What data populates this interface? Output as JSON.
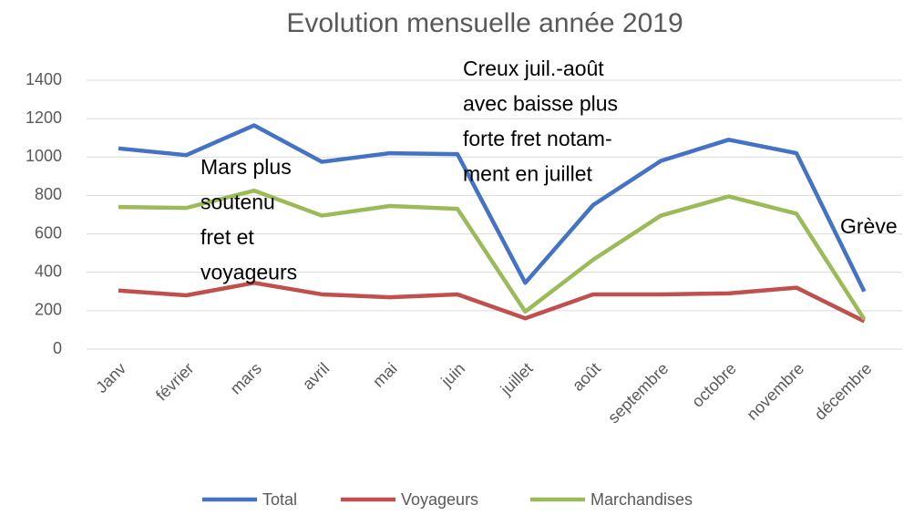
{
  "chart_data": {
    "type": "line",
    "title": "Evolution mensuelle année 2019",
    "categories": [
      "Janv",
      "février",
      "mars",
      "avril",
      "mai",
      "juin",
      "juillet",
      "août",
      "septembre",
      "octobre",
      "novembre",
      "décembre"
    ],
    "series": [
      {
        "name": "Total",
        "color": "#4472c4",
        "values": [
          1045,
          1010,
          1165,
          975,
          1020,
          1015,
          345,
          750,
          980,
          1090,
          1020,
          300
        ]
      },
      {
        "name": "Voyageurs",
        "color": "#c0504d",
        "values": [
          305,
          280,
          345,
          285,
          270,
          285,
          160,
          285,
          285,
          290,
          320,
          145
        ]
      },
      {
        "name": "Marchandises",
        "color": "#9bbb59",
        "values": [
          740,
          735,
          825,
          695,
          745,
          730,
          195,
          465,
          695,
          795,
          705,
          155
        ]
      }
    ],
    "ylim": [
      0,
      1400
    ],
    "yticks": [
      0,
      200,
      400,
      600,
      800,
      1000,
      1200,
      1400
    ],
    "grid": true,
    "legend": "bottom",
    "annotations": [
      {
        "lines": [
          "Mars plus",
          "soutenu",
          "fret et",
          "voyageurs"
        ]
      },
      {
        "lines": [
          "Creux juil.-août",
          "avec baisse plus",
          "forte fret notam-",
          "ment en juillet"
        ]
      },
      {
        "lines": [
          "Grève"
        ]
      }
    ]
  }
}
